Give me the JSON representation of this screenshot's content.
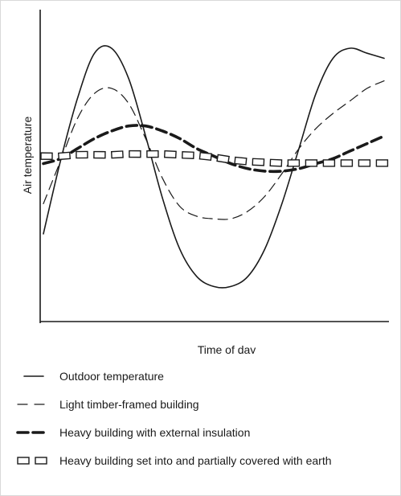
{
  "chart_data": {
    "type": "line",
    "title": "",
    "xlabel": "Time of day",
    "ylabel": "Air temperature",
    "xlim": [
      0,
      1
    ],
    "ylim": [
      0,
      1
    ],
    "grid": false,
    "axis_ticks": false,
    "legend_position": "bottom",
    "x": [
      0,
      0.05,
      0.1,
      0.15,
      0.2,
      0.25,
      0.3,
      0.35,
      0.4,
      0.45,
      0.5,
      0.55,
      0.6,
      0.65,
      0.7,
      0.75,
      0.8,
      0.85,
      0.9,
      0.95,
      1.0
    ],
    "series": [
      {
        "name": "Outdoor temperature",
        "style": "solid",
        "values": [
          0.26,
          0.55,
          0.8,
          0.98,
          1.0,
          0.88,
          0.65,
          0.4,
          0.2,
          0.09,
          0.05,
          0.05,
          0.09,
          0.2,
          0.38,
          0.6,
          0.82,
          0.96,
          1.0,
          0.98,
          0.96
        ]
      },
      {
        "name": "Light timber-framed building",
        "style": "dashed",
        "values": [
          0.38,
          0.55,
          0.72,
          0.82,
          0.84,
          0.78,
          0.64,
          0.48,
          0.37,
          0.33,
          0.32,
          0.32,
          0.35,
          0.41,
          0.5,
          0.6,
          0.68,
          0.74,
          0.79,
          0.84,
          0.87
        ]
      },
      {
        "name": "Heavy building with external insulation",
        "style": "heavy-dashed",
        "values": [
          0.54,
          0.56,
          0.6,
          0.64,
          0.67,
          0.69,
          0.69,
          0.67,
          0.64,
          0.6,
          0.57,
          0.54,
          0.52,
          0.51,
          0.51,
          0.52,
          0.54,
          0.56,
          0.59,
          0.62,
          0.65
        ]
      },
      {
        "name": "Heavy building set into and partially covered with earth",
        "style": "open-blocks",
        "values": [
          0.57,
          0.57,
          0.575,
          0.575,
          0.575,
          0.578,
          0.578,
          0.578,
          0.575,
          0.572,
          0.565,
          0.555,
          0.548,
          0.545,
          0.542,
          0.542,
          0.542,
          0.542,
          0.542,
          0.542,
          0.542
        ]
      }
    ]
  },
  "colors": {
    "line": "#1a1a1a",
    "background": "#ffffff",
    "frame": "#d9d9d9"
  }
}
